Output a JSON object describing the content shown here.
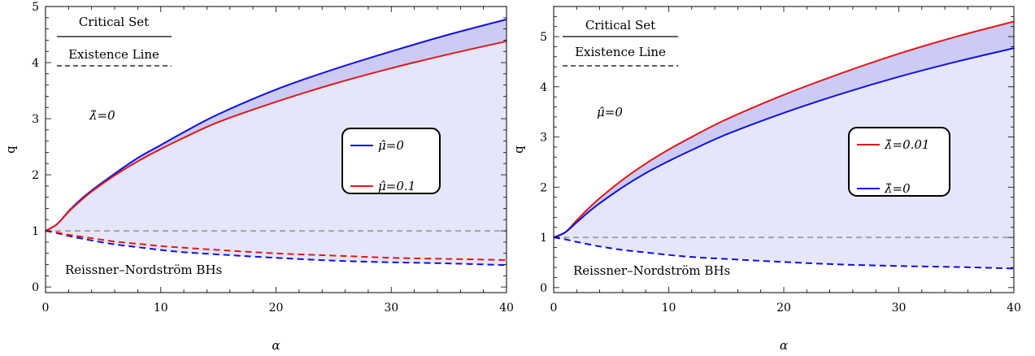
{
  "chart_data": [
    {
      "type": "line",
      "xlabel": "α",
      "ylabel": "q",
      "xlim": [
        0,
        40
      ],
      "ylim": [
        -0.1,
        5
      ],
      "xticks": [
        0,
        10,
        20,
        30,
        40
      ],
      "yticks": [
        0,
        1,
        2,
        3,
        4,
        5
      ],
      "reference_line": {
        "y": 1,
        "style": "dashed",
        "color": "#888888"
      },
      "fill": {
        "color": "#e6e6fa",
        "upper_series": 0,
        "lower_series": 2
      },
      "band_fill": {
        "color": "#cbcbf5",
        "between": [
          0,
          1
        ]
      },
      "annotations": {
        "critical_set": "Critical Set",
        "existence_line": "Existence Line",
        "param": "λ̂=0",
        "rn": "Reissner–Nordström BHs"
      },
      "legend": {
        "placement": "center-right"
      },
      "series": [
        {
          "name": "μ̂=0",
          "color": "#1010e0",
          "style": "solid",
          "x": [
            0,
            1,
            2,
            3,
            4,
            6,
            8,
            10,
            12,
            15,
            20,
            25,
            30,
            35,
            40
          ],
          "y": [
            1.0,
            1.12,
            1.35,
            1.55,
            1.72,
            2.02,
            2.3,
            2.53,
            2.76,
            3.08,
            3.52,
            3.88,
            4.2,
            4.5,
            4.77
          ]
        },
        {
          "name": "μ̂=0.1",
          "color": "#e01818",
          "style": "solid",
          "x": [
            0,
            1,
            2,
            3,
            4,
            6,
            8,
            10,
            12,
            15,
            20,
            25,
            30,
            35,
            40
          ],
          "y": [
            1.0,
            1.12,
            1.34,
            1.53,
            1.7,
            1.99,
            2.24,
            2.46,
            2.66,
            2.94,
            3.3,
            3.62,
            3.9,
            4.15,
            4.38
          ]
        },
        {
          "name": "",
          "color": "#1010e0",
          "style": "dashed",
          "x": [
            0,
            1,
            2,
            4,
            6,
            8,
            10,
            12,
            15,
            20,
            25,
            30,
            35,
            40
          ],
          "y": [
            1.0,
            0.96,
            0.91,
            0.83,
            0.76,
            0.71,
            0.66,
            0.62,
            0.58,
            0.52,
            0.47,
            0.44,
            0.42,
            0.39
          ]
        },
        {
          "name": "",
          "color": "#e01818",
          "style": "dashed",
          "x": [
            0,
            1,
            2,
            4,
            6,
            8,
            10,
            12,
            15,
            20,
            25,
            30,
            35,
            40
          ],
          "y": [
            1.0,
            0.97,
            0.93,
            0.87,
            0.81,
            0.77,
            0.73,
            0.7,
            0.66,
            0.6,
            0.56,
            0.52,
            0.5,
            0.48
          ]
        }
      ]
    },
    {
      "type": "line",
      "xlabel": "α",
      "ylabel": "q",
      "xlim": [
        0,
        40
      ],
      "ylim": [
        -0.1,
        5.6
      ],
      "xticks": [
        0,
        10,
        20,
        30,
        40
      ],
      "yticks": [
        0,
        1,
        2,
        3,
        4,
        5
      ],
      "reference_line": {
        "y": 1,
        "style": "dashed",
        "color": "#888888"
      },
      "fill": {
        "color": "#e6e6fa",
        "upper_series": 0,
        "lower_series": 2
      },
      "band_fill": {
        "color": "#cbcbf5",
        "between": [
          0,
          1
        ]
      },
      "annotations": {
        "critical_set": "Critical Set",
        "existence_line": "Existence Line",
        "param": "μ̂=0",
        "rn": "Reissner–Nordström BHs"
      },
      "legend": {
        "placement": "center-right"
      },
      "series": [
        {
          "name": "λ̂=0.01",
          "color": "#e01818",
          "style": "solid",
          "x": [
            0,
            1,
            2,
            3,
            4,
            6,
            8,
            10,
            12,
            15,
            20,
            25,
            30,
            35,
            40
          ],
          "y": [
            1.0,
            1.1,
            1.34,
            1.57,
            1.78,
            2.15,
            2.47,
            2.75,
            3.0,
            3.35,
            3.84,
            4.27,
            4.66,
            5.0,
            5.3
          ]
        },
        {
          "name": "λ̂=0",
          "color": "#1010e0",
          "style": "solid",
          "x": [
            0,
            1,
            2,
            3,
            4,
            6,
            8,
            10,
            12,
            15,
            20,
            25,
            30,
            35,
            40
          ],
          "y": [
            1.0,
            1.1,
            1.3,
            1.5,
            1.68,
            2.0,
            2.28,
            2.52,
            2.74,
            3.05,
            3.48,
            3.86,
            4.2,
            4.5,
            4.77
          ]
        },
        {
          "name": "",
          "color": "#1010e0",
          "style": "dashed",
          "x": [
            0,
            1,
            2,
            4,
            6,
            8,
            10,
            12,
            15,
            20,
            25,
            30,
            35,
            40
          ],
          "y": [
            1.0,
            0.96,
            0.91,
            0.82,
            0.75,
            0.7,
            0.65,
            0.61,
            0.57,
            0.51,
            0.46,
            0.43,
            0.41,
            0.38
          ]
        }
      ]
    }
  ]
}
